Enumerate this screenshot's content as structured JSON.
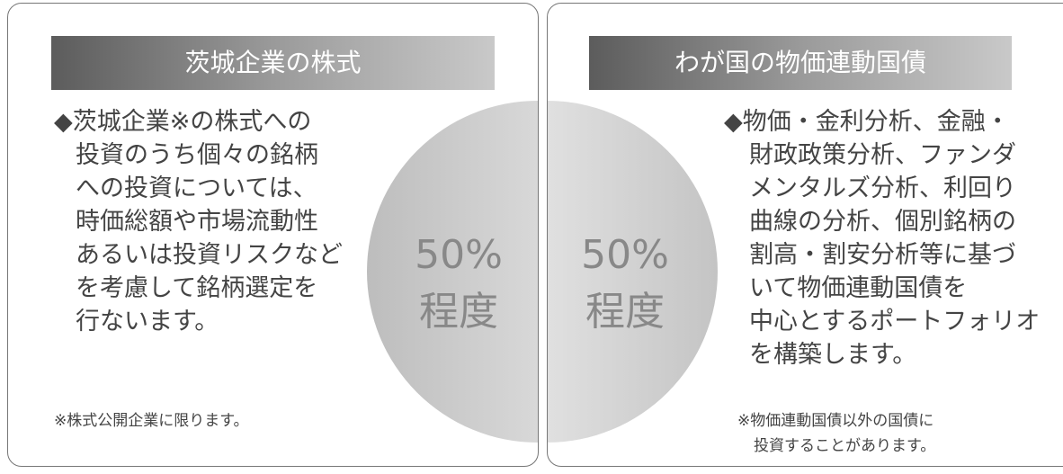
{
  "panels": [
    {
      "title": "茨城企業の株式",
      "lines": [
        "◆茨城企業※の株式への",
        "投資のうち個々の銘柄",
        "への投資については、",
        "時価総額や市場流動性",
        "あるいは投資リスクなど",
        "を考慮して銘柄選定を",
        "行ないます。"
      ],
      "percent": "50%",
      "suffix": "程度",
      "note": [
        "※株式公開企業に限ります。"
      ]
    },
    {
      "title": "わが国の物価連動国債",
      "lines": [
        "◆物価・金利分析、金融・",
        "財政政策分析、ファンダ",
        "メンタルズ分析、利回り",
        "曲線の分析、個別銘柄の",
        "割高・割安分析等に基づ",
        "いて物価連動国債を",
        "中心とするポートフォリオ",
        "を構築します。"
      ],
      "percent": "50%",
      "suffix": "程度",
      "note": [
        "※物価連動国債以外の国債に",
        "投資することがあります。"
      ]
    }
  ]
}
